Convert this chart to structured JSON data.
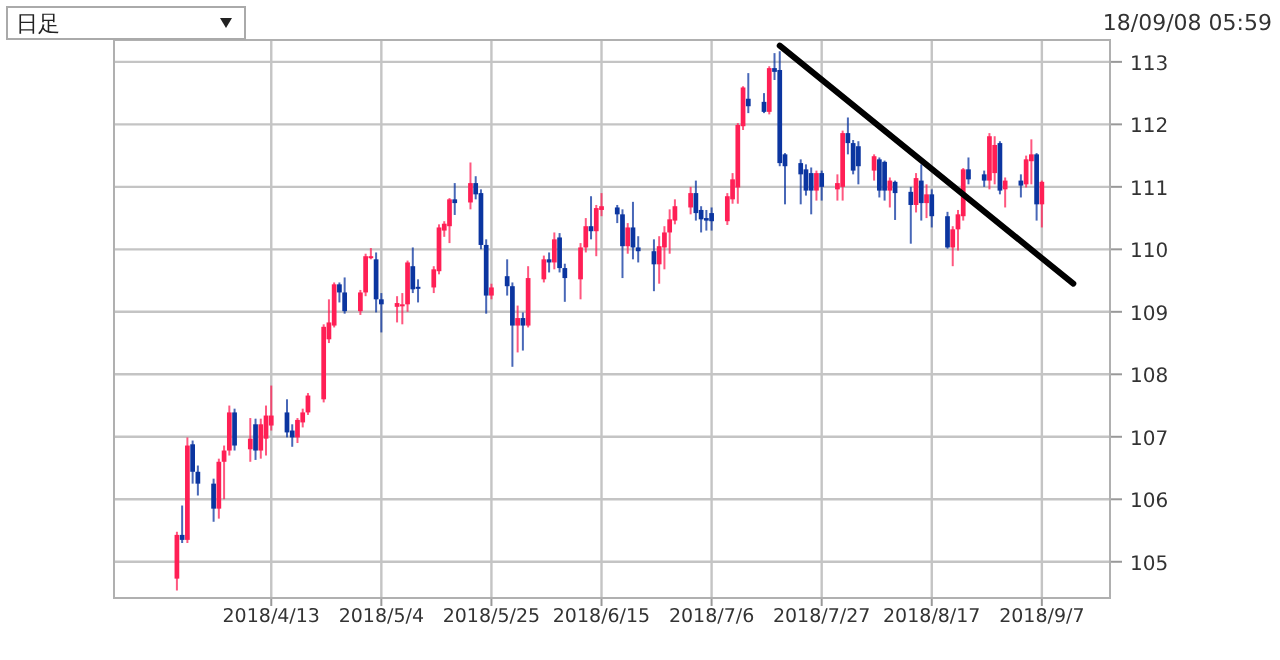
{
  "chart_data": {
    "type": "candlestick",
    "annotations": [
      "日足",
      "18/09/08 05:59"
    ],
    "x": [
      "2018-03-26",
      "2018-03-27",
      "2018-03-28",
      "2018-03-29",
      "2018-03-30",
      "2018-04-02",
      "2018-04-03",
      "2018-04-04",
      "2018-04-05",
      "2018-04-06",
      "2018-04-09",
      "2018-04-10",
      "2018-04-11",
      "2018-04-12",
      "2018-04-13",
      "2018-04-16",
      "2018-04-17",
      "2018-04-18",
      "2018-04-19",
      "2018-04-20",
      "2018-04-23",
      "2018-04-24",
      "2018-04-25",
      "2018-04-26",
      "2018-04-27",
      "2018-04-30",
      "2018-05-01",
      "2018-05-02",
      "2018-05-03",
      "2018-05-04",
      "2018-05-07",
      "2018-05-08",
      "2018-05-09",
      "2018-05-10",
      "2018-05-11",
      "2018-05-14",
      "2018-05-15",
      "2018-05-16",
      "2018-05-17",
      "2018-05-18",
      "2018-05-21",
      "2018-05-22",
      "2018-05-23",
      "2018-05-24",
      "2018-05-25",
      "2018-05-28",
      "2018-05-29",
      "2018-05-30",
      "2018-05-31",
      "2018-06-01",
      "2018-06-04",
      "2018-06-05",
      "2018-06-06",
      "2018-06-07",
      "2018-06-08",
      "2018-06-11",
      "2018-06-12",
      "2018-06-13",
      "2018-06-14",
      "2018-06-15",
      "2018-06-18",
      "2018-06-19",
      "2018-06-20",
      "2018-06-21",
      "2018-06-22",
      "2018-06-25",
      "2018-06-26",
      "2018-06-27",
      "2018-06-28",
      "2018-06-29",
      "2018-07-02",
      "2018-07-03",
      "2018-07-04",
      "2018-07-05",
      "2018-07-06",
      "2018-07-09",
      "2018-07-10",
      "2018-07-11",
      "2018-07-12",
      "2018-07-13",
      "2018-07-16",
      "2018-07-17",
      "2018-07-18",
      "2018-07-19",
      "2018-07-20",
      "2018-07-23",
      "2018-07-24",
      "2018-07-25",
      "2018-07-26",
      "2018-07-27",
      "2018-07-30",
      "2018-07-31",
      "2018-08-01",
      "2018-08-02",
      "2018-08-03",
      "2018-08-06",
      "2018-08-07",
      "2018-08-08",
      "2018-08-09",
      "2018-08-10",
      "2018-08-13",
      "2018-08-14",
      "2018-08-15",
      "2018-08-16",
      "2018-08-17",
      "2018-08-20",
      "2018-08-21",
      "2018-08-22",
      "2018-08-23",
      "2018-08-24",
      "2018-08-27",
      "2018-08-28",
      "2018-08-29",
      "2018-08-30",
      "2018-08-31",
      "2018-09-03",
      "2018-09-04",
      "2018-09-05",
      "2018-09-06",
      "2018-09-07"
    ],
    "ohlc": [
      [
        104.73,
        105.48,
        104.54,
        105.43
      ],
      [
        105.43,
        105.9,
        105.3,
        105.35
      ],
      [
        105.35,
        106.99,
        105.3,
        106.86
      ],
      [
        106.88,
        106.94,
        106.25,
        106.44
      ],
      [
        106.44,
        106.54,
        106.06,
        106.25
      ],
      [
        106.25,
        106.33,
        105.64,
        105.85
      ],
      [
        105.85,
        106.65,
        105.69,
        106.6
      ],
      [
        106.6,
        106.86,
        106.0,
        106.78
      ],
      [
        106.78,
        107.5,
        106.7,
        107.39
      ],
      [
        107.39,
        107.45,
        106.78,
        106.86
      ],
      [
        106.8,
        107.3,
        106.6,
        106.97
      ],
      [
        107.2,
        107.29,
        106.63,
        106.78
      ],
      [
        106.78,
        107.29,
        106.65,
        107.2
      ],
      [
        106.97,
        107.5,
        106.7,
        107.34
      ],
      [
        107.18,
        107.82,
        107.1,
        107.34
      ],
      [
        107.39,
        107.6,
        106.99,
        107.07
      ],
      [
        107.1,
        107.2,
        106.84,
        106.99
      ],
      [
        106.99,
        107.3,
        106.9,
        107.27
      ],
      [
        107.23,
        107.45,
        107.15,
        107.39
      ],
      [
        107.39,
        107.7,
        107.35,
        107.66
      ],
      [
        107.6,
        108.8,
        107.55,
        108.76
      ],
      [
        108.56,
        109.2,
        108.5,
        108.83
      ],
      [
        108.78,
        109.47,
        108.75,
        109.44
      ],
      [
        109.44,
        109.47,
        109.15,
        109.31
      ],
      [
        109.31,
        109.55,
        108.97,
        109.01
      ],
      [
        109.01,
        109.35,
        108.95,
        109.31
      ],
      [
        109.31,
        109.93,
        109.25,
        109.89
      ],
      [
        109.86,
        110.02,
        109.84,
        109.89
      ],
      [
        109.84,
        109.95,
        108.99,
        109.2
      ],
      [
        109.2,
        109.3,
        108.67,
        109.12
      ],
      [
        109.08,
        109.25,
        108.83,
        109.14
      ],
      [
        109.1,
        109.3,
        108.8,
        109.12
      ],
      [
        109.12,
        109.82,
        109.0,
        109.79
      ],
      [
        109.73,
        110.03,
        109.3,
        109.36
      ],
      [
        109.4,
        109.52,
        109.15,
        109.38
      ],
      [
        109.39,
        109.73,
        109.3,
        109.68
      ],
      [
        109.65,
        110.4,
        109.6,
        110.35
      ],
      [
        110.3,
        110.45,
        110.2,
        110.41
      ],
      [
        110.37,
        110.82,
        110.1,
        110.8
      ],
      [
        110.8,
        111.06,
        110.55,
        110.74
      ],
      [
        110.75,
        111.39,
        110.64,
        111.06
      ],
      [
        111.06,
        111.17,
        110.8,
        110.88
      ],
      [
        110.9,
        110.96,
        110.0,
        110.07
      ],
      [
        110.07,
        110.16,
        108.97,
        109.26
      ],
      [
        109.26,
        109.45,
        109.2,
        109.39
      ],
      [
        109.57,
        109.84,
        109.26,
        109.41
      ],
      [
        109.41,
        109.47,
        108.12,
        108.78
      ],
      [
        108.78,
        109.1,
        108.35,
        108.9
      ],
      [
        108.9,
        108.99,
        108.38,
        108.78
      ],
      [
        108.78,
        109.73,
        108.75,
        109.54
      ],
      [
        109.52,
        109.9,
        109.47,
        109.84
      ],
      [
        109.84,
        109.95,
        109.63,
        109.79
      ],
      [
        109.79,
        110.27,
        109.68,
        110.16
      ],
      [
        110.19,
        110.26,
        109.63,
        109.7
      ],
      [
        109.7,
        109.77,
        109.16,
        109.54
      ],
      [
        109.52,
        110.1,
        109.2,
        110.03
      ],
      [
        110.03,
        110.5,
        109.95,
        110.37
      ],
      [
        110.37,
        110.85,
        110.16,
        110.29
      ],
      [
        110.29,
        110.71,
        109.89,
        110.66
      ],
      [
        110.63,
        110.9,
        110.53,
        110.69
      ],
      [
        110.67,
        110.71,
        110.42,
        110.56
      ],
      [
        110.56,
        110.64,
        109.54,
        110.05
      ],
      [
        110.05,
        110.42,
        109.93,
        110.35
      ],
      [
        110.35,
        110.76,
        109.84,
        110.03
      ],
      [
        110.03,
        110.21,
        109.79,
        109.97
      ],
      [
        109.97,
        110.16,
        109.33,
        109.76
      ],
      [
        109.76,
        110.21,
        109.45,
        110.05
      ],
      [
        110.03,
        110.37,
        109.68,
        110.27
      ],
      [
        110.27,
        110.64,
        109.93,
        110.48
      ],
      [
        110.46,
        110.8,
        110.4,
        110.69
      ],
      [
        110.67,
        111.0,
        110.56,
        110.9
      ],
      [
        110.9,
        111.1,
        110.46,
        110.58
      ],
      [
        110.63,
        110.69,
        110.27,
        110.48
      ],
      [
        110.5,
        110.63,
        110.3,
        110.46
      ],
      [
        110.58,
        110.67,
        110.3,
        110.45
      ],
      [
        110.45,
        110.9,
        110.39,
        110.85
      ],
      [
        110.8,
        111.22,
        110.73,
        111.12
      ],
      [
        110.99,
        112.02,
        110.73,
        111.99
      ],
      [
        111.97,
        112.61,
        111.91,
        112.59
      ],
      [
        112.41,
        112.82,
        112.18,
        112.29
      ],
      [
        112.36,
        112.5,
        112.18,
        112.2
      ],
      [
        112.2,
        112.93,
        112.16,
        112.9
      ],
      [
        112.9,
        113.14,
        112.71,
        112.84
      ],
      [
        112.87,
        113.17,
        111.33,
        111.38
      ],
      [
        111.52,
        111.54,
        110.72,
        111.33
      ],
      [
        111.38,
        111.44,
        110.72,
        111.2
      ],
      [
        111.28,
        111.36,
        110.86,
        110.94
      ],
      [
        111.22,
        111.31,
        110.56,
        110.94
      ],
      [
        110.94,
        111.26,
        110.78,
        111.22
      ],
      [
        111.22,
        111.26,
        110.78,
        111.0
      ],
      [
        110.96,
        111.2,
        110.78,
        111.06
      ],
      [
        111.0,
        111.9,
        110.78,
        111.86
      ],
      [
        111.86,
        112.11,
        111.52,
        111.7
      ],
      [
        111.7,
        111.75,
        111.2,
        111.26
      ],
      [
        111.65,
        111.73,
        111.04,
        111.33
      ],
      [
        111.26,
        111.52,
        111.1,
        111.49
      ],
      [
        111.44,
        111.47,
        110.83,
        110.94
      ],
      [
        111.4,
        111.42,
        110.78,
        110.94
      ],
      [
        110.94,
        111.15,
        110.67,
        111.1
      ],
      [
        111.08,
        111.1,
        110.47,
        110.9
      ],
      [
        110.92,
        111.0,
        110.09,
        110.71
      ],
      [
        110.71,
        111.22,
        110.59,
        111.14
      ],
      [
        111.1,
        111.36,
        110.46,
        110.74
      ],
      [
        110.74,
        111.04,
        110.5,
        110.88
      ],
      [
        110.88,
        110.96,
        110.35,
        110.53
      ],
      [
        110.53,
        110.6,
        110.01,
        110.03
      ],
      [
        110.03,
        110.37,
        109.73,
        110.32
      ],
      [
        110.32,
        110.63,
        109.98,
        110.56
      ],
      [
        110.53,
        111.3,
        110.46,
        111.28
      ],
      [
        111.28,
        111.47,
        111.04,
        111.12
      ],
      [
        111.2,
        111.26,
        111.0,
        111.1
      ],
      [
        111.1,
        111.86,
        110.96,
        111.81
      ],
      [
        111.22,
        111.81,
        111.04,
        111.67
      ],
      [
        111.7,
        111.73,
        110.88,
        110.94
      ],
      [
        110.96,
        111.15,
        110.67,
        111.1
      ],
      [
        111.1,
        111.2,
        110.83,
        111.02
      ],
      [
        111.04,
        111.5,
        110.99,
        111.44
      ],
      [
        111.41,
        111.76,
        111.04,
        111.52
      ],
      [
        111.52,
        111.54,
        110.46,
        110.72
      ],
      [
        110.72,
        111.1,
        110.35,
        111.08
      ]
    ],
    "colors": [
      "#ff1f55",
      "#0b35a0",
      "#ff1f55",
      "#0b35a0",
      "#0b35a0",
      "#0b35a0",
      "#ff1f55",
      "#ff1f55",
      "#ff1f55",
      "#0b35a0",
      "#ff1f55",
      "#0b35a0",
      "#ff1f55",
      "#ff1f55",
      "#ff1f55",
      "#0b35a0",
      "#0b35a0",
      "#ff1f55",
      "#ff1f55",
      "#ff1f55",
      "#ff1f55",
      "#ff1f55",
      "#ff1f55",
      "#0b35a0",
      "#0b35a0",
      "#ff1f55",
      "#ff1f55",
      "#ff1f55",
      "#0b35a0",
      "#0b35a0",
      "#ff1f55",
      "#ff1f55",
      "#ff1f55",
      "#0b35a0",
      "#0b35a0",
      "#ff1f55",
      "#ff1f55",
      "#ff1f55",
      "#ff1f55",
      "#0b35a0",
      "#ff1f55",
      "#0b35a0",
      "#0b35a0",
      "#0b35a0",
      "#ff1f55",
      "#0b35a0",
      "#0b35a0",
      "#ff1f55",
      "#0b35a0",
      "#ff1f55",
      "#ff1f55",
      "#0b35a0",
      "#ff1f55",
      "#0b35a0",
      "#0b35a0",
      "#ff1f55",
      "#ff1f55",
      "#0b35a0",
      "#ff1f55",
      "#ff1f55",
      "#0b35a0",
      "#0b35a0",
      "#ff1f55",
      "#0b35a0",
      "#0b35a0",
      "#0b35a0",
      "#ff1f55",
      "#ff1f55",
      "#ff1f55",
      "#ff1f55",
      "#ff1f55",
      "#0b35a0",
      "#0b35a0",
      "#0b35a0",
      "#0b35a0",
      "#ff1f55",
      "#ff1f55",
      "#ff1f55",
      "#ff1f55",
      "#0b35a0",
      "#0b35a0",
      "#ff1f55",
      "#0b35a0",
      "#0b35a0",
      "#0b35a0",
      "#0b35a0",
      "#0b35a0",
      "#0b35a0",
      "#ff1f55",
      "#0b35a0",
      "#ff1f55",
      "#ff1f55",
      "#0b35a0",
      "#0b35a0",
      "#0b35a0",
      "#ff1f55",
      "#0b35a0",
      "#0b35a0",
      "#ff1f55",
      "#0b35a0",
      "#0b35a0",
      "#ff1f55",
      "#0b35a0",
      "#ff1f55",
      "#0b35a0",
      "#0b35a0",
      "#ff1f55",
      "#ff1f55",
      "#ff1f55",
      "#0b35a0",
      "#0b35a0",
      "#ff1f55",
      "#ff1f55",
      "#0b35a0",
      "#ff1f55",
      "#0b35a0",
      "#ff1f55",
      "#ff1f55",
      "#0b35a0",
      "#ff1f55"
    ],
    "series": [
      {
        "type": "line",
        "color": "#000000",
        "x": [
          "2018-07-19",
          "2018-09-13"
        ],
        "values": [
          113.26,
          109.45
        ]
      }
    ],
    "xlim": [
      "2018-03-14",
      "2018-09-20"
    ],
    "xticks": [
      {
        "value": "2018-04-13",
        "label": "2018/4/13"
      },
      {
        "value": "2018-05-04",
        "label": "2018/5/4"
      },
      {
        "value": "2018-05-25",
        "label": "2018/5/25"
      },
      {
        "value": "2018-06-15",
        "label": "2018/6/15"
      },
      {
        "value": "2018-07-06",
        "label": "2018/7/6"
      },
      {
        "value": "2018-07-27",
        "label": "2018/7/27"
      },
      {
        "value": "2018-08-17",
        "label": "2018/8/17"
      },
      {
        "value": "2018-09-07",
        "label": "2018/9/7"
      }
    ],
    "ylim": [
      104.42,
      113.35
    ],
    "yticks": [
      105,
      106,
      107,
      108,
      109,
      110,
      111,
      112,
      113
    ],
    "grid": true
  }
}
